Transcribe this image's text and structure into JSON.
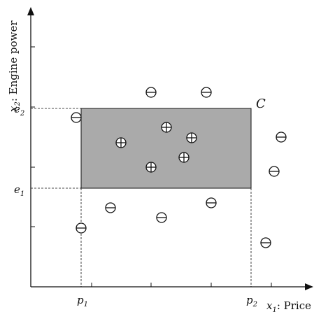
{
  "diagram": {
    "y_axis_label_var": "x",
    "y_axis_label_sub": "2",
    "y_axis_label_text": ": Engine power",
    "x_axis_label_var": "x",
    "x_axis_label_sub": "1",
    "x_axis_label_text": ": Price",
    "concept_label": "C",
    "ticks": {
      "p1": {
        "base": "p",
        "sub": "1"
      },
      "p2": {
        "base": "p",
        "sub": "2"
      },
      "e1": {
        "base": "e",
        "sub": "1"
      },
      "e2": {
        "base": "e",
        "sub": "2"
      }
    },
    "colors": {
      "rectangle_fill": "#aaaaaa",
      "stroke": "#111111",
      "background": "#ffffff"
    },
    "positive_symbol": "⊕",
    "negative_symbol": "⊖"
  }
}
